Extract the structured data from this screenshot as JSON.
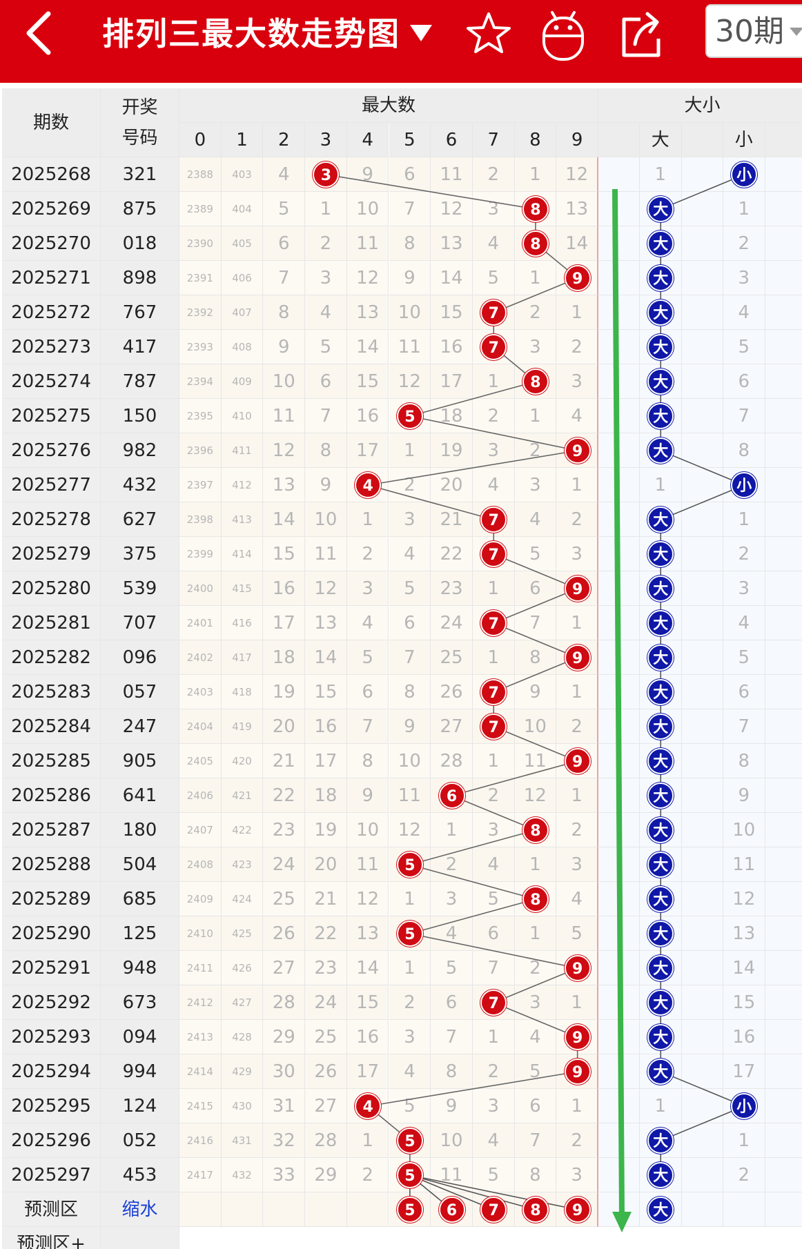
{
  "header": {
    "title": "排列三最大数走势图",
    "period_select": "30期",
    "icons": [
      "back-arrow-icon",
      "dropdown-triangle-icon",
      "star-icon",
      "android-icon",
      "share-icon"
    ],
    "bg_color": "#d9000d"
  },
  "table": {
    "col_period": "期数",
    "col_draw": [
      "开奖",
      "号码"
    ],
    "group_max": "最大数",
    "group_size": "大小",
    "digits": [
      "0",
      "1",
      "2",
      "3",
      "4",
      "5",
      "6",
      "7",
      "8",
      "9"
    ],
    "size_labels": [
      "大",
      "",
      "小",
      ""
    ],
    "rows": [
      {
        "period": "2025268",
        "draw": "321",
        "miss": [
          "2388",
          "403",
          "4",
          "3",
          "9",
          "6",
          "11",
          "2",
          "1",
          "12"
        ],
        "max": 3,
        "size": "小",
        "size_miss": [
          "1",
          "",
          "",
          ""
        ]
      },
      {
        "period": "2025269",
        "draw": "875",
        "miss": [
          "2389",
          "404",
          "5",
          "1",
          "10",
          "7",
          "12",
          "3",
          "8",
          "13"
        ],
        "max": 8,
        "size": "大",
        "size_miss": [
          "",
          "",
          "1",
          ""
        ]
      },
      {
        "period": "2025270",
        "draw": "018",
        "miss": [
          "2390",
          "405",
          "6",
          "2",
          "11",
          "8",
          "13",
          "4",
          "8",
          "14"
        ],
        "max": 8,
        "size": "大",
        "size_miss": [
          "",
          "",
          "2",
          ""
        ]
      },
      {
        "period": "2025271",
        "draw": "898",
        "miss": [
          "2391",
          "406",
          "7",
          "3",
          "12",
          "9",
          "14",
          "5",
          "1",
          "9"
        ],
        "max": 9,
        "size": "大",
        "size_miss": [
          "",
          "",
          "3",
          ""
        ]
      },
      {
        "period": "2025272",
        "draw": "767",
        "miss": [
          "2392",
          "407",
          "8",
          "4",
          "13",
          "10",
          "15",
          "7",
          "2",
          "1"
        ],
        "max": 7,
        "size": "大",
        "size_miss": [
          "",
          "",
          "4",
          ""
        ]
      },
      {
        "period": "2025273",
        "draw": "417",
        "miss": [
          "2393",
          "408",
          "9",
          "5",
          "14",
          "11",
          "16",
          "7",
          "3",
          "2"
        ],
        "max": 7,
        "size": "大",
        "size_miss": [
          "",
          "",
          "5",
          ""
        ]
      },
      {
        "period": "2025274",
        "draw": "787",
        "miss": [
          "2394",
          "409",
          "10",
          "6",
          "15",
          "12",
          "17",
          "1",
          "8",
          "3"
        ],
        "max": 8,
        "size": "大",
        "size_miss": [
          "",
          "",
          "6",
          ""
        ]
      },
      {
        "period": "2025275",
        "draw": "150",
        "miss": [
          "2395",
          "410",
          "11",
          "7",
          "16",
          "5",
          "18",
          "2",
          "1",
          "4"
        ],
        "max": 5,
        "size": "大",
        "size_miss": [
          "",
          "",
          "7",
          ""
        ]
      },
      {
        "period": "2025276",
        "draw": "982",
        "miss": [
          "2396",
          "411",
          "12",
          "8",
          "17",
          "1",
          "19",
          "3",
          "2",
          "9"
        ],
        "max": 9,
        "size": "大",
        "size_miss": [
          "",
          "",
          "8",
          ""
        ]
      },
      {
        "period": "2025277",
        "draw": "432",
        "miss": [
          "2397",
          "412",
          "13",
          "9",
          "4",
          "2",
          "20",
          "4",
          "3",
          "1"
        ],
        "max": 4,
        "size": "小",
        "size_miss": [
          "1",
          "",
          "",
          ""
        ]
      },
      {
        "period": "2025278",
        "draw": "627",
        "miss": [
          "2398",
          "413",
          "14",
          "10",
          "1",
          "3",
          "21",
          "7",
          "4",
          "2"
        ],
        "max": 7,
        "size": "大",
        "size_miss": [
          "",
          "",
          "1",
          ""
        ]
      },
      {
        "period": "2025279",
        "draw": "375",
        "miss": [
          "2399",
          "414",
          "15",
          "11",
          "2",
          "4",
          "22",
          "7",
          "5",
          "3"
        ],
        "max": 7,
        "size": "大",
        "size_miss": [
          "",
          "",
          "2",
          ""
        ]
      },
      {
        "period": "2025280",
        "draw": "539",
        "miss": [
          "2400",
          "415",
          "16",
          "12",
          "3",
          "5",
          "23",
          "1",
          "6",
          "9"
        ],
        "max": 9,
        "size": "大",
        "size_miss": [
          "",
          "",
          "3",
          ""
        ]
      },
      {
        "period": "2025281",
        "draw": "707",
        "miss": [
          "2401",
          "416",
          "17",
          "13",
          "4",
          "6",
          "24",
          "7",
          "7",
          "1"
        ],
        "max": 7,
        "size": "大",
        "size_miss": [
          "",
          "",
          "4",
          ""
        ]
      },
      {
        "period": "2025282",
        "draw": "096",
        "miss": [
          "2402",
          "417",
          "18",
          "14",
          "5",
          "7",
          "25",
          "1",
          "8",
          "9"
        ],
        "max": 9,
        "size": "大",
        "size_miss": [
          "",
          "",
          "5",
          ""
        ]
      },
      {
        "period": "2025283",
        "draw": "057",
        "miss": [
          "2403",
          "418",
          "19",
          "15",
          "6",
          "8",
          "26",
          "7",
          "9",
          "1"
        ],
        "max": 7,
        "size": "大",
        "size_miss": [
          "",
          "",
          "6",
          ""
        ]
      },
      {
        "period": "2025284",
        "draw": "247",
        "miss": [
          "2404",
          "419",
          "20",
          "16",
          "7",
          "9",
          "27",
          "7",
          "10",
          "2"
        ],
        "max": 7,
        "size": "大",
        "size_miss": [
          "",
          "",
          "7",
          ""
        ]
      },
      {
        "period": "2025285",
        "draw": "905",
        "miss": [
          "2405",
          "420",
          "21",
          "17",
          "8",
          "10",
          "28",
          "1",
          "11",
          "9"
        ],
        "max": 9,
        "size": "大",
        "size_miss": [
          "",
          "",
          "8",
          ""
        ]
      },
      {
        "period": "2025286",
        "draw": "641",
        "miss": [
          "2406",
          "421",
          "22",
          "18",
          "9",
          "11",
          "6",
          "2",
          "12",
          "1"
        ],
        "max": 6,
        "size": "大",
        "size_miss": [
          "",
          "",
          "9",
          ""
        ]
      },
      {
        "period": "2025287",
        "draw": "180",
        "miss": [
          "2407",
          "422",
          "23",
          "19",
          "10",
          "12",
          "1",
          "3",
          "8",
          "2"
        ],
        "max": 8,
        "size": "大",
        "size_miss": [
          "",
          "",
          "10",
          ""
        ]
      },
      {
        "period": "2025288",
        "draw": "504",
        "miss": [
          "2408",
          "423",
          "24",
          "20",
          "11",
          "5",
          "2",
          "4",
          "1",
          "3"
        ],
        "max": 5,
        "size": "大",
        "size_miss": [
          "",
          "",
          "11",
          ""
        ]
      },
      {
        "period": "2025289",
        "draw": "685",
        "miss": [
          "2409",
          "424",
          "25",
          "21",
          "12",
          "1",
          "3",
          "5",
          "8",
          "4"
        ],
        "max": 8,
        "size": "大",
        "size_miss": [
          "",
          "",
          "12",
          ""
        ]
      },
      {
        "period": "2025290",
        "draw": "125",
        "miss": [
          "2410",
          "425",
          "26",
          "22",
          "13",
          "5",
          "4",
          "6",
          "1",
          "5"
        ],
        "max": 5,
        "size": "大",
        "size_miss": [
          "",
          "",
          "13",
          ""
        ]
      },
      {
        "period": "2025291",
        "draw": "948",
        "miss": [
          "2411",
          "426",
          "27",
          "23",
          "14",
          "1",
          "5",
          "7",
          "2",
          "9"
        ],
        "max": 9,
        "size": "大",
        "size_miss": [
          "",
          "",
          "14",
          ""
        ]
      },
      {
        "period": "2025292",
        "draw": "673",
        "miss": [
          "2412",
          "427",
          "28",
          "24",
          "15",
          "2",
          "6",
          "7",
          "3",
          "1"
        ],
        "max": 7,
        "size": "大",
        "size_miss": [
          "",
          "",
          "15",
          ""
        ]
      },
      {
        "period": "2025293",
        "draw": "094",
        "miss": [
          "2413",
          "428",
          "29",
          "25",
          "16",
          "3",
          "7",
          "1",
          "4",
          "9"
        ],
        "max": 9,
        "size": "大",
        "size_miss": [
          "",
          "",
          "16",
          ""
        ]
      },
      {
        "period": "2025294",
        "draw": "994",
        "miss": [
          "2414",
          "429",
          "30",
          "26",
          "17",
          "4",
          "8",
          "2",
          "5",
          "9"
        ],
        "max": 9,
        "size": "大",
        "size_miss": [
          "",
          "",
          "17",
          ""
        ]
      },
      {
        "period": "2025295",
        "draw": "124",
        "miss": [
          "2415",
          "430",
          "31",
          "27",
          "4",
          "5",
          "9",
          "3",
          "6",
          "1"
        ],
        "max": 4,
        "size": "小",
        "size_miss": [
          "1",
          "",
          "",
          ""
        ]
      },
      {
        "period": "2025296",
        "draw": "052",
        "miss": [
          "2416",
          "431",
          "32",
          "28",
          "1",
          "5",
          "10",
          "4",
          "7",
          "2"
        ],
        "max": 5,
        "size": "大",
        "size_miss": [
          "",
          "",
          "1",
          ""
        ]
      },
      {
        "period": "2025297",
        "draw": "453",
        "miss": [
          "2417",
          "432",
          "33",
          "29",
          "2",
          "5",
          "11",
          "5",
          "8",
          "3"
        ],
        "max": 5,
        "size": "大",
        "size_miss": [
          "",
          "",
          "2",
          ""
        ]
      }
    ],
    "predict": {
      "label": "预测区",
      "link": "缩水",
      "balls": [
        "5",
        "6",
        "7",
        "8",
        "9"
      ],
      "size": "大"
    },
    "predict_plus_label": "预测区+"
  },
  "colors": {
    "red_ball": "#cf0a12",
    "blue_ball": "#1018a8",
    "trend_arrow": "#3cb54a",
    "link": "#1a3fd6"
  }
}
